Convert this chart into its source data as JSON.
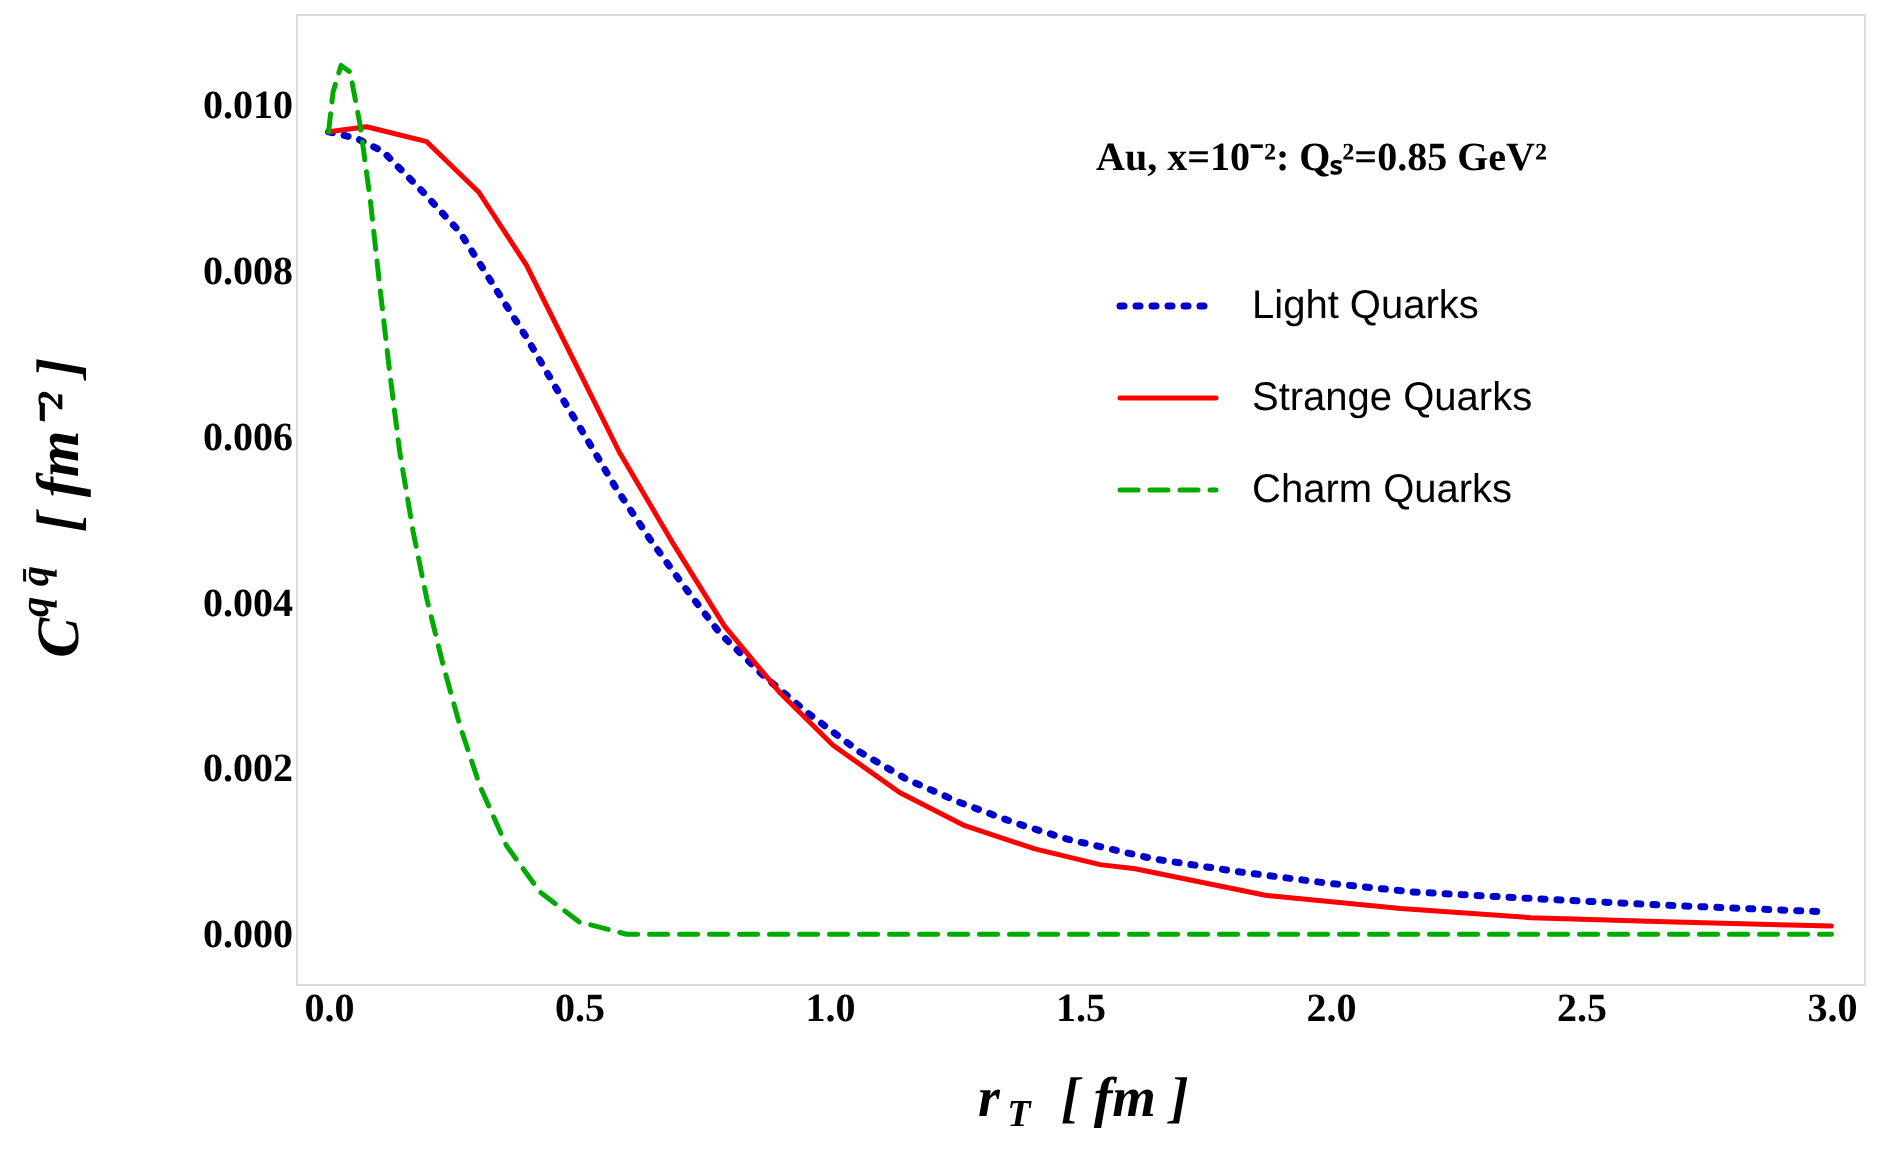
{
  "chart_data": {
    "type": "line",
    "xlabel": "r$_{T}$ [ fm ]",
    "ylabel": "C$^{q q̄}$ [ fm⁻² ]",
    "annotations": [
      "Au, x=10⁻²:  Qₛ²=0.85 GeV²"
    ],
    "xlim": [
      -0.065,
      3.065
    ],
    "ylim": [
      -0.0006,
      0.0111
    ],
    "xticks": [
      {
        "value": 0,
        "label": "0.0"
      },
      0.5,
      {
        "value": 1,
        "label": "1.0"
      },
      1.5,
      {
        "value": 2,
        "label": "2.0"
      },
      2.5,
      {
        "value": 3,
        "label": "3.0"
      }
    ],
    "yticks": [
      {
        "value": 0,
        "label": "0.000"
      },
      0.002,
      0.004,
      0.006,
      0.008,
      {
        "value": 0.01,
        "label": "0.010"
      }
    ],
    "grid": false,
    "legend": "top right",
    "marker": "none",
    "series": [
      {
        "name": "Light Quarks",
        "color": "#0000cc",
        "line_style": "dotted",
        "x": [
          0,
          0.056,
          0.109,
          0.189,
          0.262,
          0.329,
          0.395,
          0.455,
          0.515,
          0.575,
          0.641,
          0.708,
          0.78,
          0.868,
          0.954,
          1.06,
          1.154,
          1.26,
          1.367,
          1.473,
          1.646,
          1.82,
          1.99,
          2.165,
          2.405,
          2.67,
          2.99
        ],
        "values": [
          0.00968,
          0.0096,
          0.00944,
          0.00895,
          0.00847,
          0.00783,
          0.0072,
          0.00658,
          0.00598,
          0.00537,
          0.00477,
          0.00421,
          0.00364,
          0.00312,
          0.00268,
          0.0022,
          0.00187,
          0.00159,
          0.00135,
          0.00115,
          0.00091,
          0.00075,
          0.00062,
          0.00051,
          0.00043,
          0.00035,
          0.00027
        ]
      },
      {
        "name": "Strange Quarks",
        "color": "#ff0000",
        "line_style": "solid",
        "x": [
          0,
          0.076,
          0.196,
          0.3,
          0.395,
          0.488,
          0.58,
          0.69,
          0.79,
          0.9,
          1.007,
          1.14,
          1.27,
          1.41,
          1.54,
          1.61,
          1.87,
          2.14,
          2.4,
          2.67,
          3.0
        ],
        "values": [
          0.00968,
          0.00974,
          0.00956,
          0.00895,
          0.00807,
          0.00694,
          0.00582,
          0.00469,
          0.00372,
          0.00292,
          0.00228,
          0.00171,
          0.00131,
          0.00103,
          0.00084,
          0.00079,
          0.00047,
          0.00031,
          0.0002,
          0.00015,
          0.0001
        ]
      },
      {
        "name": "Charm Quarks",
        "color": "#00aa00",
        "line_style": "dashed",
        "x": [
          0,
          0.009,
          0.025,
          0.043,
          0.063,
          0.083,
          0.102,
          0.122,
          0.142,
          0.169,
          0.196,
          0.229,
          0.262,
          0.302,
          0.355,
          0.422,
          0.5,
          0.595,
          0.728,
          1.5,
          3.0
        ],
        "values": [
          0.00968,
          0.01016,
          0.01048,
          0.0104,
          0.00976,
          0.00887,
          0.00783,
          0.00678,
          0.00582,
          0.00485,
          0.00405,
          0.00324,
          0.00252,
          0.00179,
          0.00107,
          0.00051,
          0.00015,
          0,
          0,
          0,
          0
        ]
      }
    ]
  }
}
